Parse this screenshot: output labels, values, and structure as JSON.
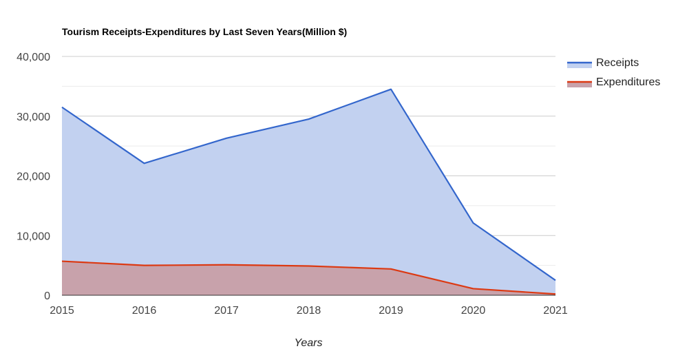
{
  "chart_data": {
    "type": "area",
    "title": "Tourism Receipts-Expenditures by Last Seven Years(Million $)",
    "xlabel": "Years",
    "ylabel": "",
    "categories": [
      "2015",
      "2016",
      "2017",
      "2018",
      "2019",
      "2020",
      "2021"
    ],
    "y_ticks": [
      "0",
      "10,000",
      "20,000",
      "30,000",
      "40,000"
    ],
    "ylim": [
      0,
      40000
    ],
    "grid": true,
    "legend_position": "right",
    "series": [
      {
        "name": "Receipts",
        "values": [
          31500,
          22100,
          26300,
          29500,
          34500,
          12100,
          2500
        ],
        "line_color": "#3366cc",
        "fill_color": "#c2d1f0"
      },
      {
        "name": "Expenditures",
        "values": [
          5700,
          5000,
          5100,
          4900,
          4400,
          1100,
          200
        ],
        "line_color": "#dc3912",
        "fill_color": "#c8a2ab"
      }
    ]
  }
}
